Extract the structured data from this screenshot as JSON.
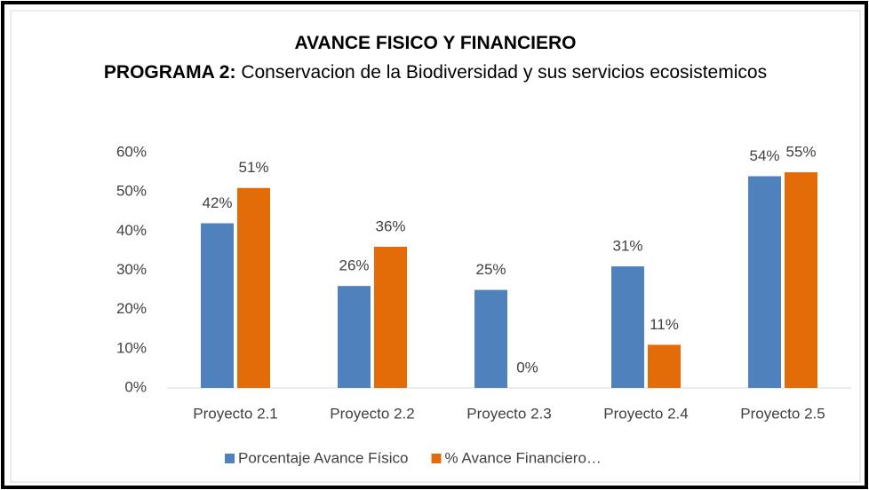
{
  "chart_data": {
    "type": "bar",
    "title": "AVANCE FISICO Y FINANCIERO",
    "subtitle_label": "PROGRAMA 2:",
    "subtitle": "Conservacion de la Biodiversidad y sus servicios ecosistemicos",
    "categories": [
      "Proyecto 2.1",
      "Proyecto 2.2",
      "Proyecto 2.3",
      "Proyecto 2.4",
      "Proyecto 2.5"
    ],
    "series": [
      {
        "name": "Porcentaje Avance Físico",
        "color": "#4f81bd",
        "values": [
          42,
          26,
          25,
          31,
          54
        ],
        "value_labels": [
          "42%",
          "26%",
          "25%",
          "31%",
          "54%"
        ]
      },
      {
        "name": "% Avance Financiero…",
        "color": "#e36c09",
        "values": [
          51,
          36,
          0,
          11,
          55
        ],
        "value_labels": [
          "51%",
          "36%",
          "0%",
          "11%",
          "55%"
        ]
      }
    ],
    "ylim": [
      0,
      60
    ],
    "yticks": [
      {
        "value": 0,
        "label": "0%"
      },
      {
        "value": 10,
        "label": "10%"
      },
      {
        "value": 20,
        "label": "20%"
      },
      {
        "value": 30,
        "label": "30%"
      },
      {
        "value": 40,
        "label": "40%"
      },
      {
        "value": 50,
        "label": "50%"
      },
      {
        "value": 60,
        "label": "60%"
      }
    ],
    "grid": false,
    "legend": "bottom"
  }
}
